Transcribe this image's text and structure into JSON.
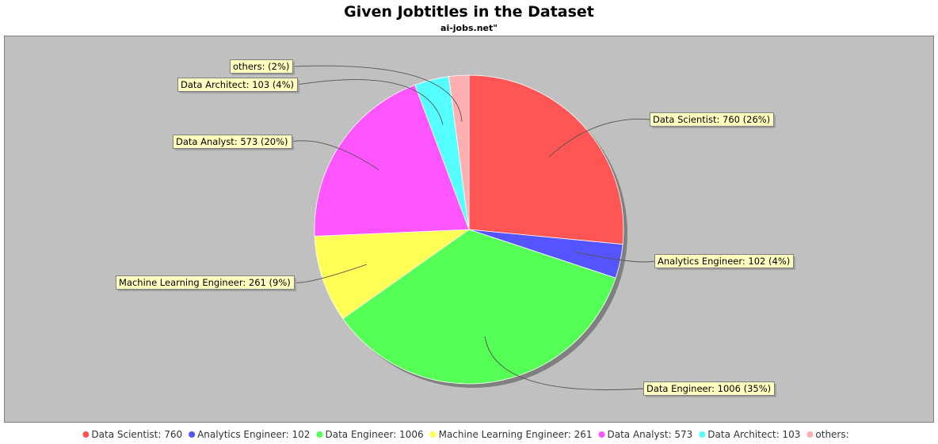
{
  "chart_data": {
    "type": "pie",
    "title": "Given Jobtitles in the Dataset",
    "subtitle": "ai-jobs.net\"",
    "slices": [
      {
        "name": "Data Scientist",
        "value": 760,
        "label": "Data Scientist: 760 (26%)",
        "legend": "Data Scientist: 760",
        "color": "#ff5555"
      },
      {
        "name": "Analytics Engineer",
        "value": 102,
        "label": "Analytics Engineer: 102 (4%)",
        "legend": "Analytics Engineer: 102",
        "color": "#5555ff"
      },
      {
        "name": "Data Engineer",
        "value": 1006,
        "label": "Data Engineer: 1006 (35%)",
        "legend": "Data Engineer: 1006",
        "color": "#55ff55"
      },
      {
        "name": "Machine Learning Engineer",
        "value": 261,
        "label": "Machine Learning Engineer: 261 (9%)",
        "legend": "Machine Learning Engineer: 261",
        "color": "#ffff55"
      },
      {
        "name": "Data Analyst",
        "value": 573,
        "label": "Data Analyst: 573 (20%)",
        "legend": "Data Analyst: 573",
        "color": "#ff55ff"
      },
      {
        "name": "Data Architect",
        "value": 103,
        "label": "Data Architect: 103 (4%)",
        "legend": "Data Architect: 103",
        "color": "#55ffff"
      },
      {
        "name": "others",
        "value": 60,
        "label": "others:  (2%)",
        "legend": "others:",
        "color": "#ffafaf"
      }
    ],
    "legend_position": "bottom",
    "plot_background": "#c0c0c0",
    "label_background": "#ffffc0"
  }
}
